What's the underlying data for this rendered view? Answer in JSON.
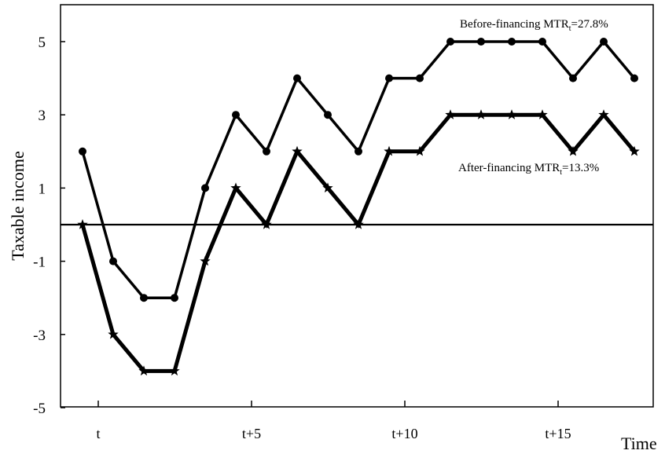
{
  "chart_data": {
    "type": "line",
    "xlabel": "Time",
    "ylabel": "Taxable income",
    "xlim": [
      -1,
      18
    ],
    "ylim": [
      -5,
      6
    ],
    "grid": false,
    "x_tick_labels": [
      {
        "x": 0,
        "label": "t"
      },
      {
        "x": 5,
        "label": "t+5"
      },
      {
        "x": 10,
        "label": "t+10"
      },
      {
        "x": 15,
        "label": "t+15"
      }
    ],
    "y_ticks": [
      {
        "value": 5,
        "label": "5"
      },
      {
        "value": 3,
        "label": "3"
      },
      {
        "value": 1,
        "label": "1"
      },
      {
        "value": -1,
        "label": "-1"
      },
      {
        "value": -3,
        "label": "-3"
      },
      {
        "value": -5,
        "label": "-5"
      }
    ],
    "reference_line_y": 0,
    "x": [
      0,
      1,
      2,
      3,
      4,
      5,
      6,
      7,
      8,
      9,
      10,
      11,
      12,
      13,
      14,
      15,
      16,
      17,
      18
    ],
    "series": [
      {
        "key": "before",
        "marker": "circle",
        "values": [
          2,
          -1,
          -2,
          -2,
          1,
          3,
          2,
          4,
          3,
          2,
          4,
          4,
          5,
          5,
          5,
          5,
          4,
          5,
          4
        ]
      },
      {
        "key": "after",
        "marker": "star",
        "values": [
          0,
          -3,
          -4,
          -4,
          -1,
          1,
          0,
          2,
          1,
          0,
          2,
          2,
          3,
          3,
          3,
          3,
          2,
          3,
          2
        ]
      }
    ],
    "annotations": [
      {
        "series": "before",
        "text": "Before-financing MTR",
        "subscript": "t",
        "suffix": "=27.8%"
      },
      {
        "series": "after",
        "text": "After-financing MTR",
        "subscript": "t",
        "suffix": "=13.3%"
      }
    ],
    "colors": {
      "line": "#000000",
      "background": "#ffffff"
    }
  }
}
